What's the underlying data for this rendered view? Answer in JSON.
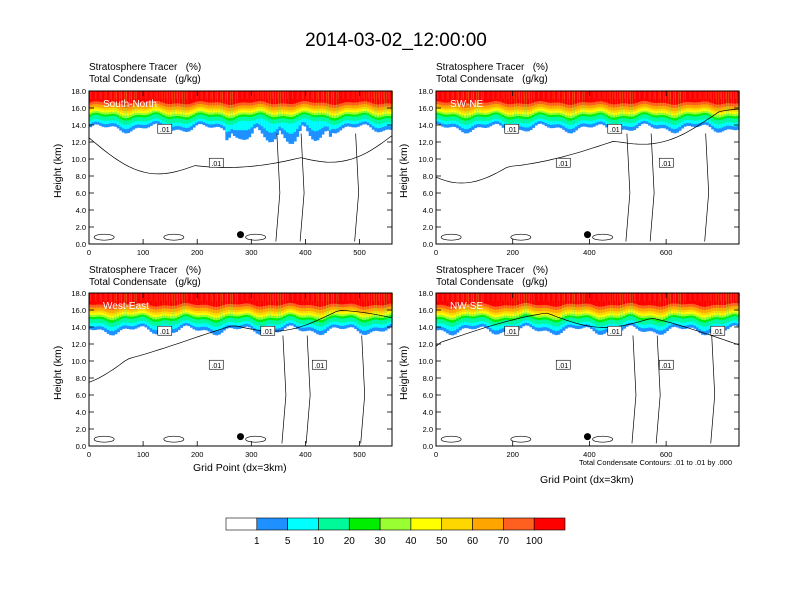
{
  "title": "2014-03-02_12:00:00",
  "contour_note": "Total Condensate Contours: .01 to .01 by .000",
  "colorbar": {
    "colors": [
      "#ffffff",
      "#1e90ff",
      "#00ffff",
      "#00fa9a",
      "#00ee00",
      "#9aff32",
      "#ffff00",
      "#ffd700",
      "#ffa500",
      "#ff6020",
      "#ff0000"
    ],
    "labels": [
      "1",
      "5",
      "10",
      "20",
      "30",
      "40",
      "50",
      "60",
      "70",
      "100"
    ]
  },
  "chart_data": [
    {
      "type": "contour",
      "header": [
        "Stratosphere Tracer   (%)",
        "Total Condensate   (g/kg)"
      ],
      "label": "South-North",
      "xlabel": "",
      "ylabel": "Height (km)",
      "xlim": [
        0,
        560
      ],
      "ylim": [
        0,
        18
      ],
      "xticks": [
        "0",
        "100",
        "200",
        "300",
        "400",
        "500"
      ],
      "yticks": [
        "0.0",
        "2.0",
        "4.0",
        "6.0",
        "8.0",
        "10.0",
        "12.0",
        "14.0",
        "16.0",
        "18.0"
      ],
      "contour_labels": [
        ".01",
        ".01"
      ]
    },
    {
      "type": "contour",
      "header": [
        "Stratosphere Tracer   (%)",
        "Total Condensate   (g/kg)"
      ],
      "label": "SW-NE",
      "xlabel": "",
      "ylabel": "Height (km)",
      "xlim": [
        0,
        790
      ],
      "ylim": [
        0,
        18
      ],
      "xticks": [
        "0",
        "200",
        "400",
        "600"
      ],
      "yticks": [
        "0.0",
        "2.0",
        "4.0",
        "6.0",
        "8.0",
        "10.0",
        "12.0",
        "14.0",
        "16.0",
        "18.0"
      ],
      "contour_labels": [
        ".01",
        ".01",
        ".01",
        ".01"
      ]
    },
    {
      "type": "contour",
      "header": [
        "Stratosphere Tracer   (%)",
        "Total Condensate   (g/kg)"
      ],
      "label": "West-East",
      "xlabel": "Grid Point (dx=3km)",
      "ylabel": "Height (km)",
      "xlim": [
        0,
        560
      ],
      "ylim": [
        0,
        18
      ],
      "xticks": [
        "0",
        "100",
        "200",
        "300",
        "400",
        "500"
      ],
      "yticks": [
        "0.0",
        "2.0",
        "4.0",
        "6.0",
        "8.0",
        "10.0",
        "12.0",
        "14.0",
        "16.0",
        "18.0"
      ],
      "contour_labels": [
        ".01",
        ".01",
        ".01",
        ".01"
      ]
    },
    {
      "type": "contour",
      "header": [
        "Stratosphere Tracer   (%)",
        "Total Condensate   (g/kg)"
      ],
      "label": "NW-SE",
      "xlabel": "Grid Point (dx=3km)",
      "ylabel": "Height (km)",
      "xlim": [
        0,
        790
      ],
      "ylim": [
        0,
        18
      ],
      "xticks": [
        "0",
        "200",
        "400",
        "600"
      ],
      "yticks": [
        "0.0",
        "2.0",
        "4.0",
        "6.0",
        "8.0",
        "10.0",
        "12.0",
        "14.0",
        "16.0",
        "18.0"
      ],
      "contour_labels": [
        ".01",
        ".01",
        ".01",
        ".01",
        ".01"
      ]
    }
  ]
}
